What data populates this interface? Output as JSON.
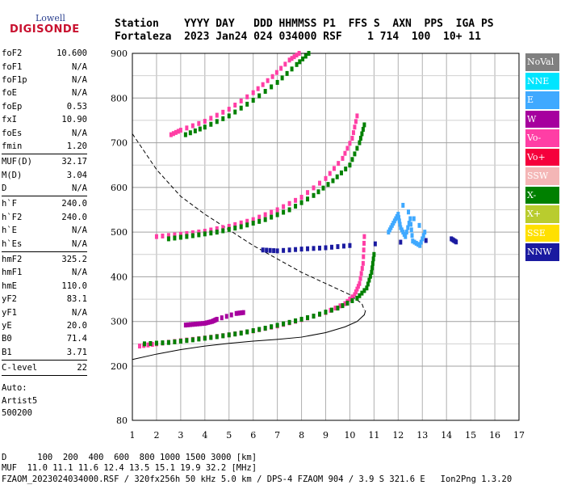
{
  "logo": {
    "sub": "Lowell",
    "main": "DIGISONDE"
  },
  "header": {
    "line1": "Station    YYYY DAY   DDD HHMMSS P1  FFS S  AXN  PPS  IGA PS",
    "line2": "Fortaleza  2023 Jan24 024 034000 RSF    1 714  100  10+ 11"
  },
  "params": [
    {
      "group": [
        {
          "k": "foF2",
          "v": "10.600"
        },
        {
          "k": "foF1",
          "v": "N/A"
        },
        {
          "k": "foF1p",
          "v": "N/A"
        },
        {
          "k": "foE",
          "v": "N/A"
        },
        {
          "k": "foEp",
          "v": "0.53"
        },
        {
          "k": "fxI",
          "v": "10.90"
        },
        {
          "k": "foEs",
          "v": "N/A"
        },
        {
          "k": "fmin",
          "v": "1.20"
        }
      ]
    },
    {
      "group": [
        {
          "k": "MUF(D)",
          "v": "32.17"
        },
        {
          "k": "M(D)",
          "v": "3.04"
        },
        {
          "k": "D",
          "v": "N/A"
        }
      ]
    },
    {
      "group": [
        {
          "k": "h`F",
          "v": "240.0"
        },
        {
          "k": "h`F2",
          "v": "240.0"
        },
        {
          "k": "h`E",
          "v": "N/A"
        },
        {
          "k": "h`Es",
          "v": "N/A"
        }
      ]
    },
    {
      "group": [
        {
          "k": "hmF2",
          "v": "325.2"
        },
        {
          "k": "hmF1",
          "v": "N/A"
        },
        {
          "k": "hmE",
          "v": "110.0"
        },
        {
          "k": "yF2",
          "v": "83.1"
        },
        {
          "k": "yF1",
          "v": "N/A"
        },
        {
          "k": "yE",
          "v": "20.0"
        },
        {
          "k": "B0",
          "v": "71.4"
        },
        {
          "k": "B1",
          "v": "3.71"
        }
      ]
    },
    {
      "group": [
        {
          "k": "C-level",
          "v": "22"
        }
      ]
    }
  ],
  "notes": [
    "Auto:",
    "Artist5",
    "500200"
  ],
  "footer": {
    "line1": "D      100  200  400  600  800 1000 1500 3000 [km]",
    "line2": "MUF  11.0 11.1 11.6 12.4 13.5 15.1 19.9 32.2 [MHz]",
    "line3": "FZAOM_2023024034000.RSF / 320fx256h 50 kHz 5.0 km / DPS-4 FZAOM 904 / 3.9 S 321.6 E   Ion2Png 1.3.20"
  },
  "legend": [
    {
      "label": "NoVal",
      "color": "#808080"
    },
    {
      "label": "NNE",
      "color": "#00e5ff"
    },
    {
      "label": "E",
      "color": "#3fa9ff"
    },
    {
      "label": "W",
      "color": "#a6009e"
    },
    {
      "label": "Vo-",
      "color": "#ff3ea5"
    },
    {
      "label": "Vo+",
      "color": "#f5003c"
    },
    {
      "label": "SSW",
      "color": "#f4b6b6"
    },
    {
      "label": "X-",
      "color": "#008000"
    },
    {
      "label": "X+",
      "color": "#b9cc2e"
    },
    {
      "label": "SSE",
      "color": "#ffe000"
    },
    {
      "label": "NNW",
      "color": "#1a1aa0"
    }
  ],
  "chart_data": {
    "type": "scatter",
    "x_ticks": [
      "1",
      "2",
      "3",
      "4",
      "5",
      "6",
      "7",
      "8",
      "9",
      "10",
      "11",
      "12",
      "13",
      "14",
      "15",
      "16",
      "17"
    ],
    "y_ticks": [
      "80",
      "200",
      "300",
      "400",
      "500",
      "600",
      "700",
      "800",
      "900"
    ],
    "xlim": [
      1,
      17
    ],
    "ylim": [
      80,
      900
    ],
    "grid": true,
    "legend_placement": "right",
    "series": [
      {
        "name": "Vo-",
        "color": "#ff3ea5",
        "points": [
          [
            1.3,
            245
          ],
          [
            2,
            250
          ],
          [
            3,
            257
          ],
          [
            4,
            263
          ],
          [
            5,
            270
          ],
          [
            6,
            279
          ],
          [
            7,
            290
          ],
          [
            8,
            304
          ],
          [
            9,
            320
          ],
          [
            9.8,
            340
          ],
          [
            10.2,
            360
          ],
          [
            10.4,
            385
          ],
          [
            10.55,
            430
          ],
          [
            10.6,
            490
          ]
        ]
      },
      {
        "name": "X-",
        "color": "#008000",
        "points": [
          [
            1.5,
            250
          ],
          [
            2.5,
            253
          ],
          [
            3.5,
            259
          ],
          [
            4.5,
            266
          ],
          [
            5.5,
            274
          ],
          [
            6.5,
            285
          ],
          [
            7.5,
            298
          ],
          [
            8.5,
            312
          ],
          [
            9.5,
            330
          ],
          [
            10.3,
            352
          ],
          [
            10.7,
            375
          ],
          [
            10.9,
            410
          ],
          [
            11.0,
            450
          ]
        ]
      },
      {
        "name": "W",
        "color": "#a6009e",
        "points": [
          [
            3.2,
            292
          ],
          [
            3.6,
            294
          ],
          [
            4.0,
            296
          ],
          [
            4.3,
            300
          ],
          [
            4.5,
            305
          ],
          [
            5.3,
            318
          ],
          [
            5.6,
            320
          ]
        ]
      },
      {
        "name": "Vo-",
        "color": "#ff3ea5",
        "points": [
          [
            2.0,
            490
          ],
          [
            3,
            495
          ],
          [
            4,
            502
          ],
          [
            5,
            513
          ],
          [
            6,
            528
          ],
          [
            7,
            550
          ],
          [
            8,
            578
          ],
          [
            9,
            620
          ],
          [
            9.7,
            665
          ],
          [
            10.1,
            710
          ],
          [
            10.3,
            760
          ]
        ]
      },
      {
        "name": "X-",
        "color": "#008000",
        "points": [
          [
            2.5,
            485
          ],
          [
            3.5,
            492
          ],
          [
            4.5,
            500
          ],
          [
            5.5,
            512
          ],
          [
            6.5,
            528
          ],
          [
            7.5,
            550
          ],
          [
            8.5,
            582
          ],
          [
            9.3,
            615
          ],
          [
            10,
            650
          ],
          [
            10.4,
            700
          ],
          [
            10.6,
            740
          ]
        ]
      },
      {
        "name": "Vo-",
        "color": "#ff3ea5",
        "points": [
          [
            2.6,
            718
          ],
          [
            3,
            728
          ],
          [
            4,
            748
          ],
          [
            5,
            775
          ],
          [
            6,
            812
          ],
          [
            6.8,
            848
          ],
          [
            7.5,
            885
          ],
          [
            7.9,
            900
          ]
        ]
      },
      {
        "name": "X-",
        "color": "#008000",
        "points": [
          [
            3.2,
            718
          ],
          [
            4,
            735
          ],
          [
            5,
            760
          ],
          [
            6,
            795
          ],
          [
            7,
            835
          ],
          [
            7.8,
            875
          ],
          [
            8.3,
            900
          ]
        ]
      },
      {
        "name": "E",
        "color": "#3fa9ff",
        "points": [
          [
            11.6,
            500
          ],
          [
            11.8,
            520
          ],
          [
            12,
            540
          ],
          [
            12.1,
            510
          ],
          [
            12.3,
            490
          ],
          [
            12.5,
            530
          ],
          [
            12.6,
            480
          ],
          [
            12.9,
            470
          ],
          [
            13.1,
            500
          ],
          [
            12.2,
            560
          ]
        ]
      },
      {
        "name": "NNW",
        "color": "#1a1aa0",
        "points": [
          [
            6.4,
            460
          ],
          [
            7,
            458
          ],
          [
            8,
            462
          ],
          [
            9,
            465
          ],
          [
            10,
            470
          ],
          [
            14.2,
            485
          ],
          [
            14.4,
            478
          ]
        ]
      }
    ],
    "profile_line": {
      "name": "profile",
      "points": [
        [
          1,
          215
        ],
        [
          2,
          227
        ],
        [
          3,
          237
        ],
        [
          4,
          245
        ],
        [
          5,
          251
        ],
        [
          6,
          256
        ],
        [
          7,
          260
        ],
        [
          8,
          265
        ],
        [
          9,
          275
        ],
        [
          9.8,
          288
        ],
        [
          10.3,
          300
        ],
        [
          10.6,
          315
        ],
        [
          10.65,
          325
        ]
      ]
    },
    "dashed_line": {
      "name": "MUF",
      "points": [
        [
          1,
          720
        ],
        [
          2,
          640
        ],
        [
          3,
          580
        ],
        [
          4,
          540
        ],
        [
          5,
          505
        ],
        [
          6,
          470
        ],
        [
          7,
          440
        ],
        [
          8,
          410
        ],
        [
          9,
          385
        ],
        [
          10,
          360
        ],
        [
          10.5,
          340
        ],
        [
          10.6,
          325
        ]
      ]
    }
  }
}
